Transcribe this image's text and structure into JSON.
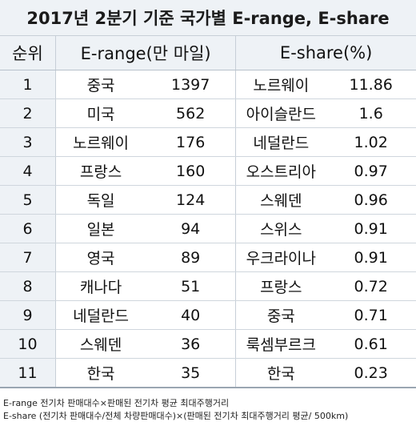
{
  "title": "2017년 2분기 기준 국가별 E-range, E-share",
  "headers": {
    "rank": "순위",
    "erange": "E-range(만 마일)",
    "eshare": "E-share(%)"
  },
  "rows": [
    {
      "rank": "1",
      "erange_country": "중국",
      "erange_value": "1397",
      "eshare_country": "노르웨이",
      "eshare_value": "11.86"
    },
    {
      "rank": "2",
      "erange_country": "미국",
      "erange_value": "562",
      "eshare_country": "아이슬란드",
      "eshare_value": "1.6"
    },
    {
      "rank": "3",
      "erange_country": "노르웨이",
      "erange_value": "176",
      "eshare_country": "네덜란드",
      "eshare_value": "1.02"
    },
    {
      "rank": "4",
      "erange_country": "프랑스",
      "erange_value": "160",
      "eshare_country": "오스트리아",
      "eshare_value": "0.97"
    },
    {
      "rank": "5",
      "erange_country": "독일",
      "erange_value": "124",
      "eshare_country": "스웨덴",
      "eshare_value": "0.96"
    },
    {
      "rank": "6",
      "erange_country": "일본",
      "erange_value": "94",
      "eshare_country": "스위스",
      "eshare_value": "0.91"
    },
    {
      "rank": "7",
      "erange_country": "영국",
      "erange_value": "89",
      "eshare_country": "우크라이나",
      "eshare_value": "0.91"
    },
    {
      "rank": "8",
      "erange_country": "캐나다",
      "erange_value": "51",
      "eshare_country": "프랑스",
      "eshare_value": "0.72"
    },
    {
      "rank": "9",
      "erange_country": "네덜란드",
      "erange_value": "40",
      "eshare_country": "중국",
      "eshare_value": "0.71"
    },
    {
      "rank": "10",
      "erange_country": "스웨덴",
      "erange_value": "36",
      "eshare_country": "룩셈부르크",
      "eshare_value": "0.61"
    },
    {
      "rank": "11",
      "erange_country": "한국",
      "erange_value": "35",
      "eshare_country": "한국",
      "eshare_value": "0.23"
    }
  ],
  "notes": {
    "erange": "E-range 전기차 판매대수×판매된 전기차 평균 최대주행거리",
    "eshare": "E-share (전기차 판매대수/전체 차량판매대수)×(판매된 전기차 최대주행거리 평균/ 500km)"
  }
}
